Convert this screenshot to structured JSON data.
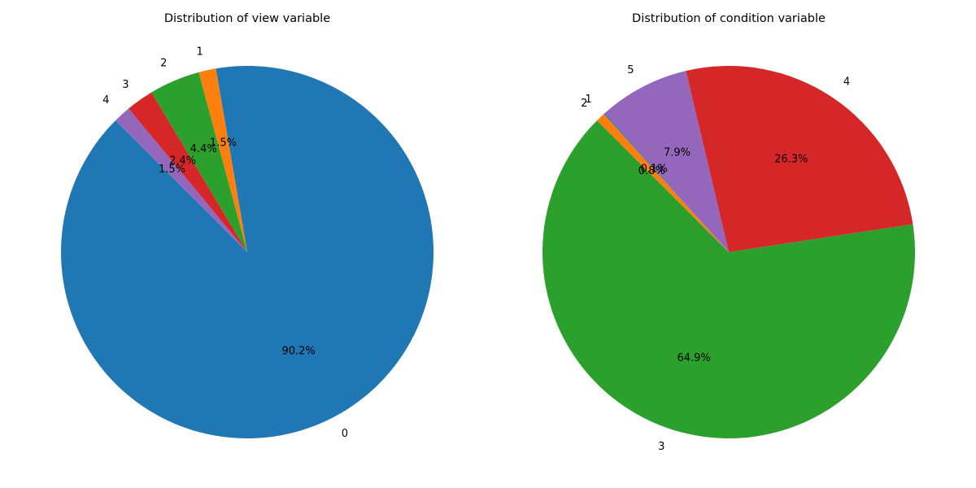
{
  "chart_data": [
    {
      "type": "pie",
      "title": "Distribution of view variable",
      "slices": [
        {
          "label": "0",
          "value": 90.2,
          "pct_label": "90.2%",
          "color": "#1f77b4"
        },
        {
          "label": "1",
          "value": 1.5,
          "pct_label": "1.5%",
          "color": "#ff7f0e"
        },
        {
          "label": "2",
          "value": 4.4,
          "pct_label": "4.4%",
          "color": "#2ca02c"
        },
        {
          "label": "3",
          "value": 2.4,
          "pct_label": "2.4%",
          "color": "#d62728"
        },
        {
          "label": "4",
          "value": 1.5,
          "pct_label": "1.5%",
          "color": "#9467bd"
        }
      ]
    },
    {
      "type": "pie",
      "title": "Distribution of condition variable",
      "slices": [
        {
          "label": "3",
          "value": 64.9,
          "pct_label": "64.9%",
          "color": "#2ca02c"
        },
        {
          "label": "4",
          "value": 26.3,
          "pct_label": "26.3%",
          "color": "#d62728"
        },
        {
          "label": "5",
          "value": 7.9,
          "pct_label": "7.9%",
          "color": "#9467bd"
        },
        {
          "label": "1",
          "value": 0.1,
          "pct_label": "0.1%",
          "color": "#1f77b4"
        },
        {
          "label": "2",
          "value": 0.8,
          "pct_label": "0.8%",
          "color": "#ff7f0e"
        }
      ]
    }
  ]
}
